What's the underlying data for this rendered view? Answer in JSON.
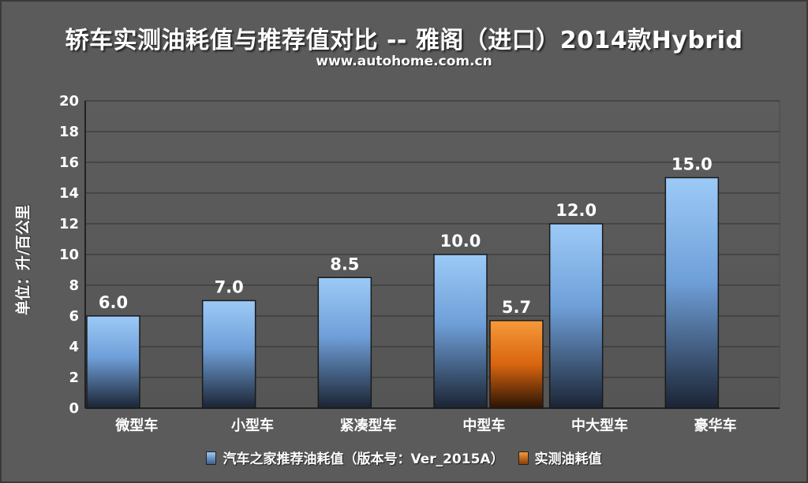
{
  "header": {
    "title": "轿车实测油耗值与推荐值对比 -- 雅阁（进口）2014款Hybrid",
    "subtitle": "www.autohome.com.cn"
  },
  "colors": {
    "recommended": "#7fb2ee",
    "actual": "#e8751a",
    "background": "#5b5b5b",
    "grid": "#3f3f3f"
  },
  "chart_data": {
    "type": "bar",
    "title": "轿车实测油耗值与推荐值对比 -- 雅阁（进口）2014款Hybrid",
    "xlabel": "",
    "ylabel": "单位：升/百公里",
    "ylim": [
      0,
      20
    ],
    "yticks": [
      0,
      2,
      4,
      6,
      8,
      10,
      12,
      14,
      16,
      18,
      20
    ],
    "grid": true,
    "legend_position": "bottom",
    "categories": [
      "微型车",
      "小型车",
      "紧凑型车",
      "中型车",
      "中大型车",
      "豪华车"
    ],
    "series": [
      {
        "name": "汽车之家推荐油耗值（版本号：Ver_2015A）",
        "values": [
          6.0,
          7.0,
          8.5,
          10.0,
          12.0,
          15.0
        ],
        "labels": [
          "6.0",
          "7.0",
          "8.5",
          "10.0",
          "12.0",
          "15.0"
        ]
      },
      {
        "name": "实测油耗值",
        "values": [
          null,
          null,
          null,
          5.7,
          null,
          null
        ],
        "labels": [
          null,
          null,
          null,
          "5.7",
          null,
          null
        ]
      }
    ]
  }
}
